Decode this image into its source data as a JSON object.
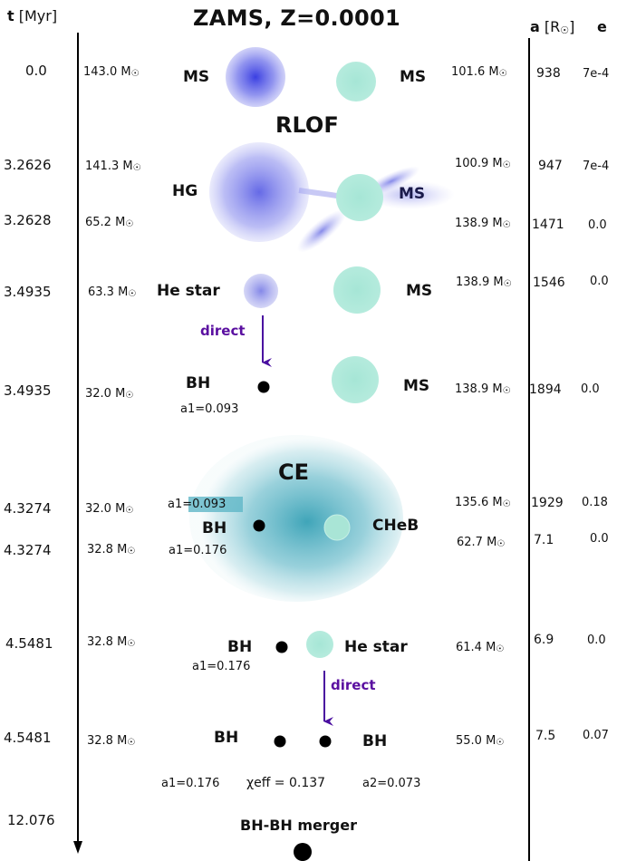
{
  "title": "ZAMS, Z=0.0001",
  "headers": {
    "time_label": "t",
    "time_unit": "[Myr]",
    "sep_label": "a",
    "sep_unit_open": "[R",
    "sep_unit_close": "]",
    "ecc_label": "e"
  },
  "colors": {
    "primary_star": "#5a5fe6",
    "secondary_star": "#9fe2d2",
    "common_envelope": "#2e9bb0",
    "direct_arrow": "#5a0fa0",
    "black_hole": "#000000"
  },
  "rows": [
    {
      "t": "0.0",
      "m1": "143.0 M",
      "s1": "MS",
      "s2": "MS",
      "m2": "101.6 M",
      "a": "938",
      "e": "7e-4"
    },
    {
      "t": "3.2626",
      "m1": "141.3 M",
      "s1": "HG",
      "s2": "MS",
      "m2": "100.9 M",
      "a": "947",
      "e": "7e-4"
    },
    {
      "t": "3.2628",
      "m1": "65.2 M",
      "m2": "138.9 M",
      "a": "1471",
      "e": "0.0"
    },
    {
      "t": "3.4935",
      "m1": "63.3 M",
      "s1": "He star",
      "s2": "MS",
      "m2": "138.9 M",
      "a": "1546",
      "e": "0.0"
    },
    {
      "t": "3.4935",
      "m1": "32.0 M",
      "s1": "BH",
      "s2": "MS",
      "m2": "138.9 M",
      "a": "1894",
      "e": "0.0"
    },
    {
      "t": "4.3274",
      "m1": "32.0 M",
      "m2": "135.6 M",
      "a": "1929",
      "e": "0.18"
    },
    {
      "t": "4.3274",
      "m1": "32.8 M",
      "s1": "BH",
      "s2": "CHeB",
      "m2": "62.7 M",
      "a": "7.1",
      "e": "0.0"
    },
    {
      "t": "4.5481",
      "m1": "32.8 M",
      "s1": "BH",
      "s2": "He star",
      "m2": "61.4 M",
      "a": "6.9",
      "e": "0.0"
    },
    {
      "t": "4.5481",
      "m1": "32.8 M",
      "s1": "BH",
      "s2": "BH",
      "m2": "55.0 M",
      "a": "7.5",
      "e": "0.07"
    },
    {
      "t": "12.076"
    }
  ],
  "events": {
    "rlof": "RLOF",
    "ce": "CE",
    "direct": "direct",
    "merger": "BH-BH merger"
  },
  "spins": {
    "a1_093": "a1=0.093",
    "a1_093_ce": "a1=0.093",
    "a1_176_ce": "a1=0.176",
    "a1_176": "a1=0.176",
    "final_a1": "a1=0.176",
    "chi_eff": "χeff = 0.137",
    "final_a2": "a2=0.073"
  },
  "sun_symbol": "☉"
}
